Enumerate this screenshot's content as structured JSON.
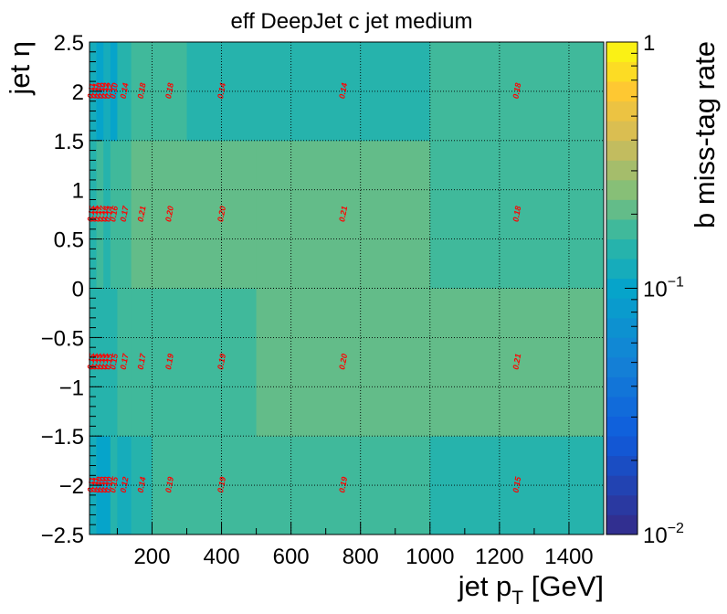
{
  "chart_data": {
    "type": "heatmap",
    "title": "eff DeepJet c jet medium",
    "xlabel": "jet p",
    "xlabel_sub": "T",
    "xlabel_unit": " [GeV]",
    "ylabel": "jet η",
    "zlabel": "b miss-tag rate",
    "xlim": [
      20,
      1500
    ],
    "ylim": [
      -2.5,
      2.5
    ],
    "zlim": [
      0.01,
      1
    ],
    "zscale": "log",
    "x_edges": [
      20,
      30,
      40,
      50,
      60,
      70,
      80,
      100,
      140,
      200,
      300,
      500,
      1000,
      1500
    ],
    "y_edges": [
      -2.5,
      -1.5,
      0,
      1.5,
      2.5
    ],
    "values": [
      [
        0.11,
        0.11,
        0.1,
        0.1,
        0.1,
        0.1,
        0.15,
        0.12,
        0.14,
        0.19,
        0.19,
        0.19,
        0.15
      ],
      [
        0.15,
        0.15,
        0.15,
        0.15,
        0.15,
        0.15,
        0.15,
        0.17,
        0.17,
        0.19,
        0.19,
        0.2,
        0.21
      ],
      [
        0.15,
        0.15,
        0.17,
        0.17,
        0.14,
        0.14,
        0.16,
        0.17,
        0.21,
        0.2,
        0.2,
        0.21,
        0.18
      ],
      [
        0.11,
        0.11,
        0.1,
        0.1,
        0.12,
        0.12,
        0.1,
        0.14,
        0.18,
        0.18,
        0.14,
        0.14,
        0.18
      ]
    ],
    "x_ticks": [
      200,
      400,
      600,
      800,
      1000,
      1200,
      1400
    ],
    "y_ticks": [
      -2.5,
      -2,
      -1.5,
      -1,
      -0.5,
      0,
      0.5,
      1,
      1.5,
      2,
      2.5
    ],
    "y_tick_text": [
      "−2.5",
      "−2",
      "−1.5",
      "−1",
      "−0.5",
      "0",
      "0.5",
      "1",
      "1.5",
      "2",
      "2.5"
    ],
    "z_tick_labels": [
      {
        "value": 0.01,
        "base": "10",
        "exp": "−2"
      },
      {
        "value": 0.1,
        "base": "10",
        "exp": "−1"
      },
      {
        "value": 1,
        "base": "1",
        "exp": ""
      }
    ],
    "grid": true,
    "legend": "colorbar-right"
  }
}
